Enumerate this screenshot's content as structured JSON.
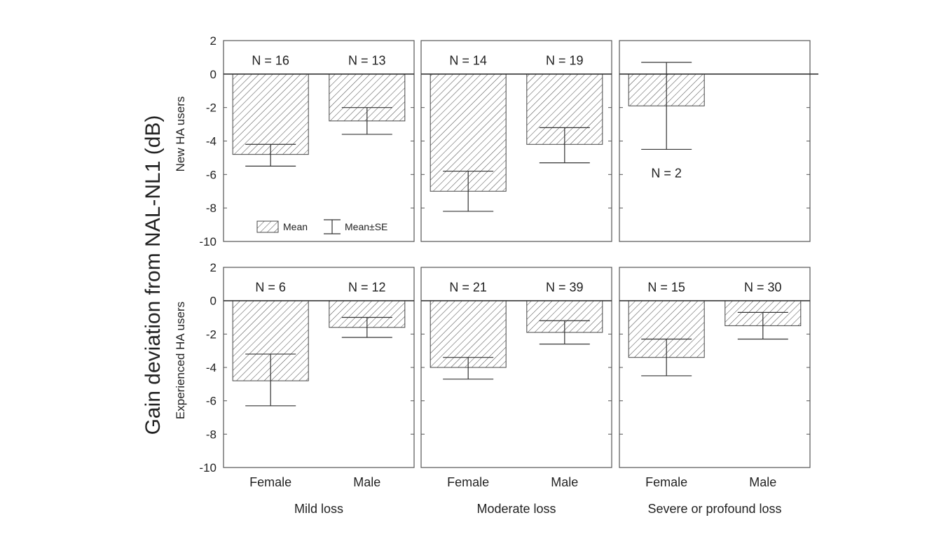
{
  "chart_data": {
    "type": "bar",
    "ylabel": "Gain deviation from NAL-NL1 (dB)",
    "row_labels": [
      "New HA users",
      "Experienced HA users"
    ],
    "column_labels": [
      "Mild loss",
      "Moderate loss",
      "Severe or profound loss"
    ],
    "categories": [
      "Female",
      "Male"
    ],
    "ylim": [
      -10,
      2
    ],
    "yticks": [
      "-10",
      "-8",
      "-6",
      "-4",
      "-2",
      "0",
      "2"
    ],
    "legend": {
      "mean": "Mean",
      "error": "Mean±SE",
      "placement": "bottom"
    },
    "panels": [
      {
        "row": 0,
        "col": 0,
        "bars": [
          {
            "category": "Female",
            "mean": -4.8,
            "se_low": -5.5,
            "se_high": -4.2,
            "n": "N = 16"
          },
          {
            "category": "Male",
            "mean": -2.8,
            "se_low": -3.6,
            "se_high": -2.0,
            "n": "N = 13"
          }
        ]
      },
      {
        "row": 0,
        "col": 1,
        "bars": [
          {
            "category": "Female",
            "mean": -7.0,
            "se_low": -8.2,
            "se_high": -5.8,
            "n": "N = 14"
          },
          {
            "category": "Male",
            "mean": -4.2,
            "se_low": -5.3,
            "se_high": -3.2,
            "n": "N = 19"
          }
        ]
      },
      {
        "row": 0,
        "col": 2,
        "bars": [
          {
            "category": "Female",
            "mean": -1.9,
            "se_low": -4.5,
            "se_high": 0.7,
            "n": "N = 2",
            "n_below": true
          }
        ]
      },
      {
        "row": 1,
        "col": 0,
        "bars": [
          {
            "category": "Female",
            "mean": -4.8,
            "se_low": -6.3,
            "se_high": -3.2,
            "n": "N =  6"
          },
          {
            "category": "Male",
            "mean": -1.6,
            "se_low": -2.2,
            "se_high": -1.0,
            "n": "N = 12"
          }
        ]
      },
      {
        "row": 1,
        "col": 1,
        "bars": [
          {
            "category": "Female",
            "mean": -4.0,
            "se_low": -4.7,
            "se_high": -3.4,
            "n": "N = 21"
          },
          {
            "category": "Male",
            "mean": -1.9,
            "se_low": -2.6,
            "se_high": -1.2,
            "n": "N = 39"
          }
        ]
      },
      {
        "row": 1,
        "col": 2,
        "bars": [
          {
            "category": "Female",
            "mean": -3.4,
            "se_low": -4.5,
            "se_high": -2.3,
            "n": "N = 15"
          },
          {
            "category": "Male",
            "mean": -1.5,
            "se_low": -2.3,
            "se_high": -0.7,
            "n": "N = 30"
          }
        ]
      }
    ]
  }
}
